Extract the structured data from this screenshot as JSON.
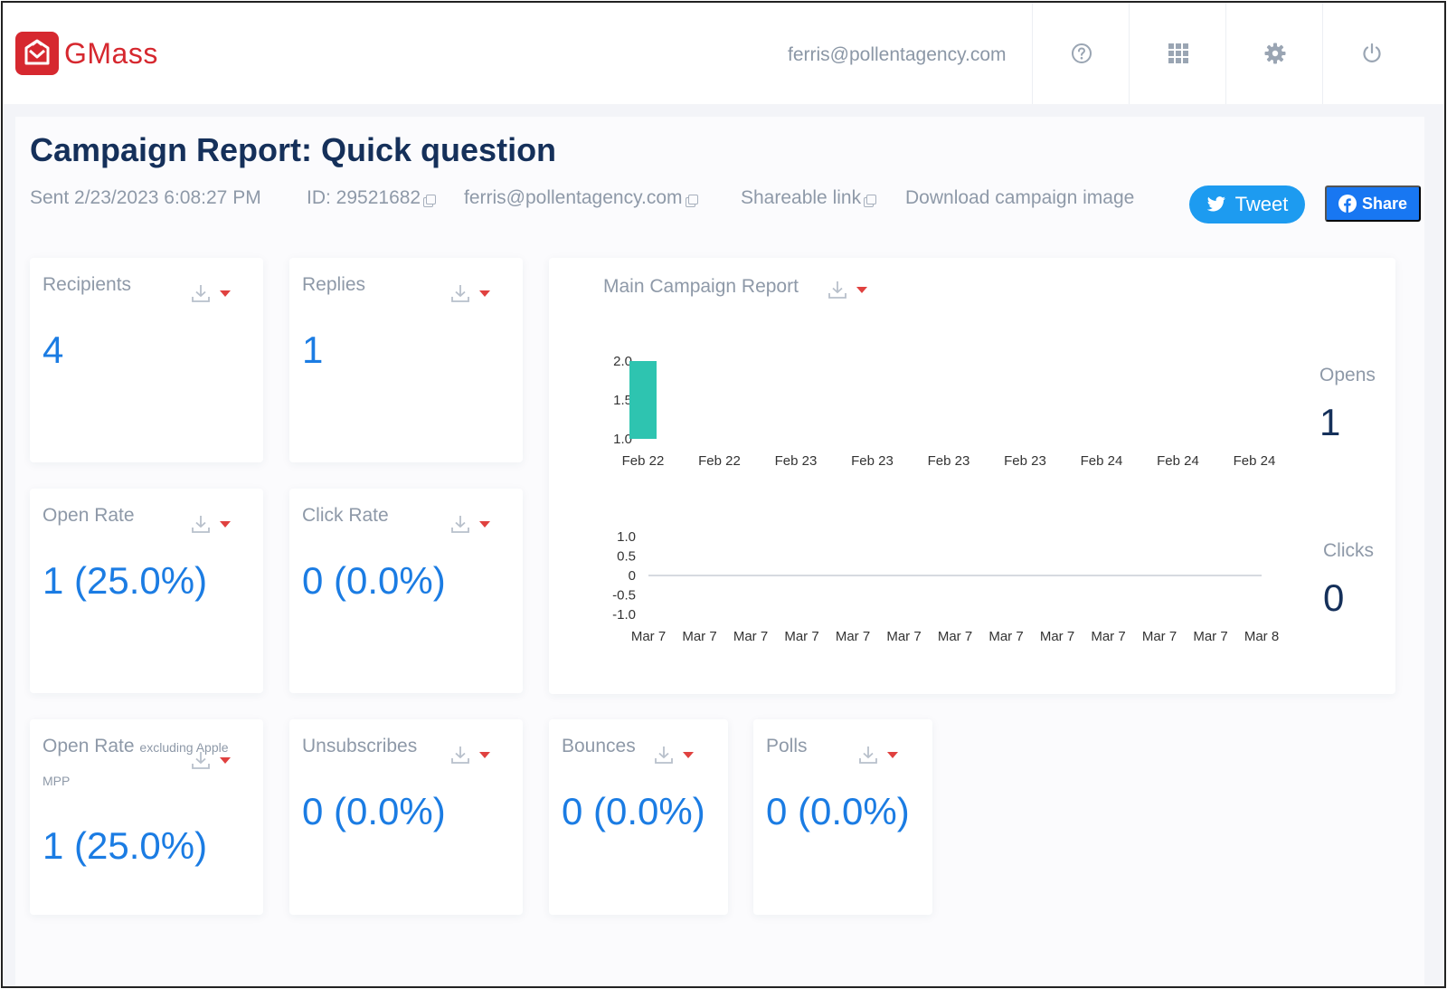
{
  "header": {
    "logo_text": "GMass",
    "user_email": "ferris@pollentagency.com",
    "icons": [
      "help-icon",
      "apps-grid-icon",
      "gear-icon",
      "power-icon"
    ]
  },
  "report": {
    "title": "Campaign Report: Quick question",
    "sent": "Sent 2/23/2023 6:08:27 PM",
    "id": "ID: 29521682",
    "email": "ferris@pollentagency.com",
    "shareable_link": "Shareable link",
    "download_image": "Download campaign image",
    "tweet_label": "Tweet",
    "share_label": "Share"
  },
  "cards": {
    "recipients": {
      "label": "Recipients",
      "value": "4"
    },
    "replies": {
      "label": "Replies",
      "value": "1"
    },
    "open_rate": {
      "label": "Open Rate",
      "value": "1 (25.0%)"
    },
    "click_rate": {
      "label": "Click Rate",
      "value": "0 (0.0%)"
    },
    "open_rate_excl": {
      "label": "Open Rate",
      "label_small": "excluding Apple",
      "label_sub": "MPP",
      "value": "1 (25.0%)"
    },
    "unsubscribes": {
      "label": "Unsubscribes",
      "value": "0 (0.0%)"
    },
    "bounces": {
      "label": "Bounces",
      "value": "0 (0.0%)"
    },
    "polls": {
      "label": "Polls",
      "value": "0 (0.0%)"
    }
  },
  "main_report": {
    "title": "Main Campaign Report",
    "opens_label": "Opens",
    "opens_value": "1",
    "clicks_label": "Clicks",
    "clicks_value": "0"
  },
  "colors": {
    "brand": "#d6282f",
    "value_blue": "#1b7ce3",
    "bar": "#2ec4b0",
    "tweet": "#1d9bf0",
    "facebook": "#1877f2"
  },
  "chart_data": [
    {
      "type": "bar",
      "title": "",
      "categories": [
        "Feb 22",
        "Feb 22",
        "Feb 23",
        "Feb 23",
        "Feb 23",
        "Feb 23",
        "Feb 24",
        "Feb 24",
        "Feb 24"
      ],
      "values": [
        2.0,
        null,
        null,
        null,
        null,
        null,
        null,
        null,
        null
      ],
      "yticks": [
        "1.0",
        "1.5",
        "2.0"
      ],
      "ylim": [
        1.0,
        2.0
      ],
      "grid": false
    },
    {
      "type": "line",
      "title": "",
      "categories": [
        "Mar 7",
        "Mar 7",
        "Mar 7",
        "Mar 7",
        "Mar 7",
        "Mar 7",
        "Mar 7",
        "Mar 7",
        "Mar 7",
        "Mar 7",
        "Mar 7",
        "Mar 7",
        "Mar 8"
      ],
      "values": [
        0,
        0,
        0,
        0,
        0,
        0,
        0,
        0,
        0,
        0,
        0,
        0,
        0
      ],
      "yticks": [
        "-1.0",
        "-0.5",
        "0",
        "0.5",
        "1.0"
      ],
      "ylim": [
        -1.0,
        1.0
      ],
      "grid": false
    }
  ]
}
